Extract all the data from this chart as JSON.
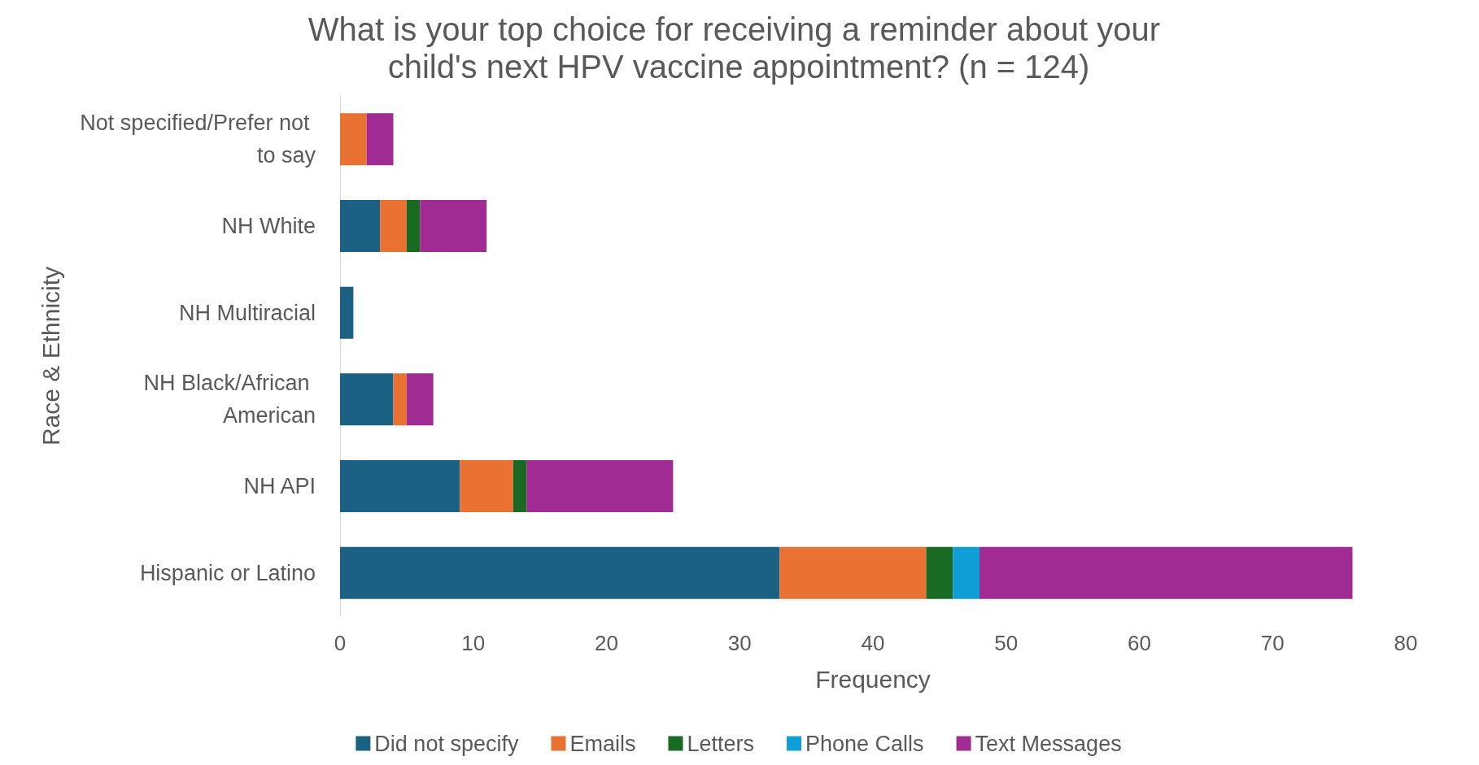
{
  "chart_data": {
    "type": "bar",
    "orientation": "horizontal",
    "stacked": true,
    "title": "What is your top choice for receiving a reminder about your child's next HPV vaccine appointment? (n = 124)",
    "xlabel": "Frequency",
    "ylabel": "Race & Ethnicity",
    "categories": [
      "Not specified/Prefer not to say",
      "NH White",
      "NH Multiracial",
      "NH Black/African American",
      "NH API",
      "Hispanic or Latino"
    ],
    "series": [
      {
        "name": "Did not specify",
        "color": "#1a6184",
        "values": [
          0,
          3,
          1,
          4,
          9,
          33
        ]
      },
      {
        "name": "Emails",
        "color": "#e97132",
        "values": [
          2,
          2,
          0,
          1,
          4,
          11
        ]
      },
      {
        "name": "Letters",
        "color": "#196b24",
        "values": [
          0,
          1,
          0,
          0,
          1,
          2
        ]
      },
      {
        "name": "Phone Calls",
        "color": "#0f9ed5",
        "values": [
          0,
          0,
          0,
          0,
          0,
          2
        ]
      },
      {
        "name": "Text Messages",
        "color": "#a02b93",
        "values": [
          2,
          5,
          0,
          2,
          11,
          28
        ]
      }
    ],
    "xlim": [
      0,
      80
    ],
    "xticks": [
      0,
      10,
      20,
      30,
      40,
      50,
      60,
      70,
      80
    ],
    "grid": false,
    "legend": "bottom"
  }
}
